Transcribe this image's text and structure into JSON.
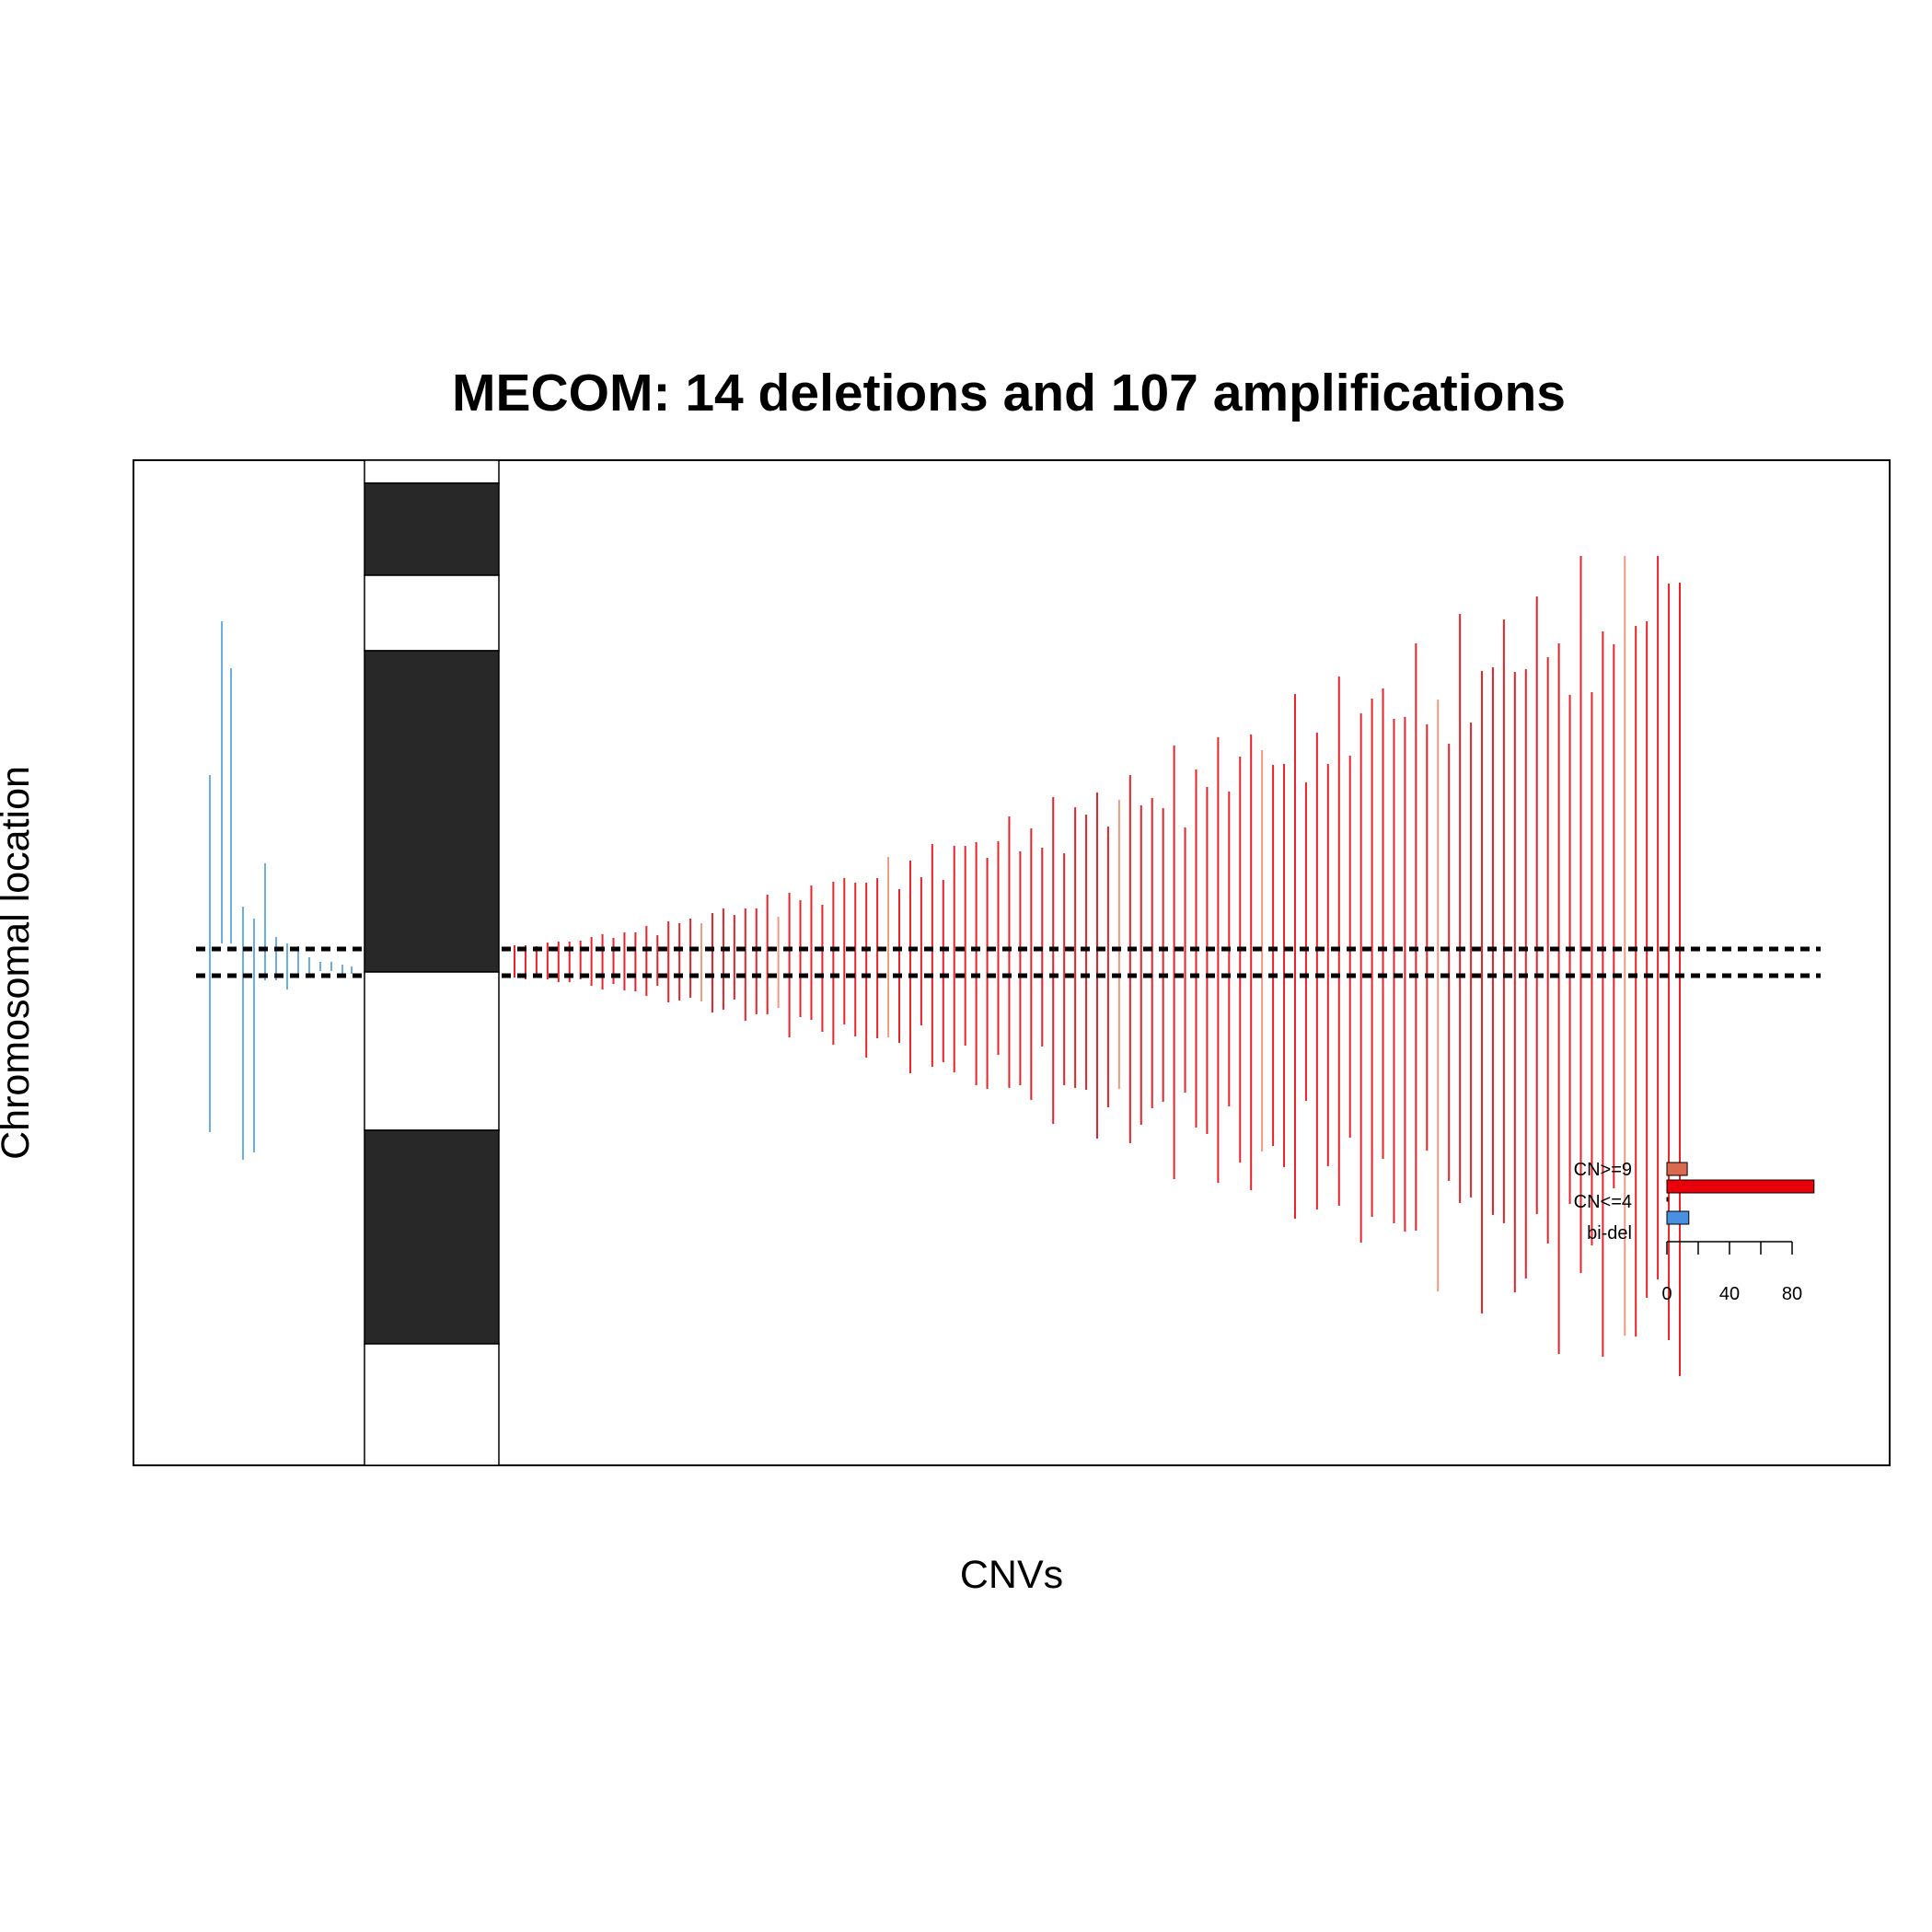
{
  "chart_data": {
    "type": "bar",
    "title": "MECOM: 14 deletions and 107 amplifications",
    "xlabel": "CNVs",
    "ylabel": "Chromosomal location",
    "grid": false,
    "colors": {
      "deletion": "#6aaee8",
      "amplification": "#e8232a",
      "amplification_light": "#ef9a80",
      "band_dark": "#282828",
      "gene_lines": "#000000"
    },
    "legend": {
      "placement": "bottom-right",
      "categories": [
        "CN>=9",
        "CN<=4",
        "bi-del"
      ],
      "series": [
        {
          "name": "CN>=9",
          "value": 13,
          "color": "#d9694f"
        },
        {
          "name": "CN<=4",
          "value": 94,
          "color": "#e8000b"
        },
        {
          "name": "",
          "value": 0,
          "color": "#3a4f9c"
        },
        {
          "name": "bi-del",
          "value": 14,
          "color": "#4a90e2"
        }
      ],
      "ticks": [
        "0",
        "40",
        "80"
      ]
    }
  }
}
